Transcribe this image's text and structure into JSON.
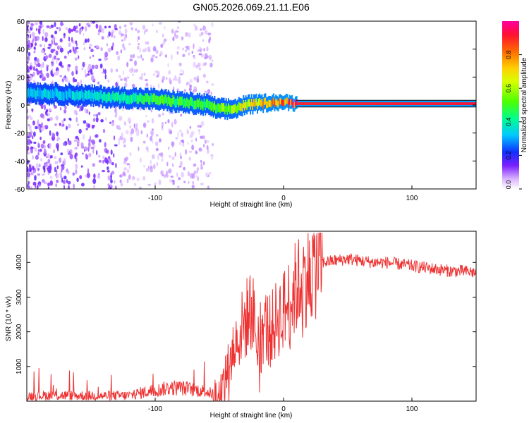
{
  "title": "GN05.2026.069.21.11.E06",
  "chart_data": [
    {
      "type": "heatmap",
      "xlabel": "Height of straight line (km)",
      "ylabel": "Frequency (Hz)",
      "xlim": [
        -200,
        150
      ],
      "ylim": [
        -60,
        60
      ],
      "x_ticks": [
        -100,
        0,
        100
      ],
      "x_tick_labels": [
        "-100",
        "0",
        "100"
      ],
      "y_ticks": [
        -60,
        -40,
        -20,
        0,
        20,
        40,
        60
      ],
      "y_tick_labels": [
        "-60",
        "-40",
        "-20",
        "0",
        "20",
        "40",
        "60"
      ],
      "colorbar": {
        "label": "Normalized spectral amplitude",
        "range": [
          0,
          1
        ],
        "ticks": [
          0.0,
          0.2,
          0.4,
          0.6,
          0.8
        ],
        "tick_labels": [
          "0.0",
          "0.2",
          "0.4",
          "0.6",
          "0.8"
        ]
      },
      "ridge": {
        "x": [
          -200,
          -180,
          -160,
          -140,
          -120,
          -100,
          -80,
          -60,
          -50,
          -40,
          -30,
          -20,
          -10,
          0,
          10,
          150
        ],
        "y": [
          9,
          8,
          7,
          6,
          5,
          4,
          2,
          0,
          -3,
          -3,
          0,
          1,
          2,
          2,
          1,
          1
        ],
        "amplitude": [
          0.35,
          0.35,
          0.35,
          0.4,
          0.45,
          0.5,
          0.5,
          0.5,
          0.55,
          0.6,
          0.7,
          0.75,
          0.8,
          0.85,
          0.9,
          0.92
        ]
      }
    },
    {
      "type": "line",
      "xlabel": "Height of straight line (km)",
      "ylabel": "SNR (10 * v/v)",
      "xlim": [
        -200,
        150
      ],
      "ylim": [
        0,
        4900
      ],
      "x_ticks": [
        -100,
        0,
        100
      ],
      "x_tick_labels": [
        "-100",
        "0",
        "100"
      ],
      "y_ticks": [
        1000,
        2000,
        3000,
        4000
      ],
      "y_tick_labels": [
        "1000",
        "2000",
        "3000",
        "4000"
      ],
      "series": [
        {
          "name": "SNR",
          "color": "#ee3333",
          "x": [
            -200,
            -180,
            -160,
            -140,
            -120,
            -110,
            -100,
            -90,
            -80,
            -70,
            -60,
            -55,
            -50,
            -45,
            -40,
            -35,
            -30,
            -25,
            -20,
            -15,
            -10,
            -5,
            0,
            5,
            10,
            15,
            20,
            25,
            30,
            40,
            50,
            60,
            70,
            80,
            90,
            100,
            110,
            120,
            130,
            140,
            150
          ],
          "y": [
            150,
            170,
            160,
            150,
            160,
            250,
            300,
            380,
            380,
            330,
            280,
            200,
            180,
            600,
            1400,
            1900,
            2300,
            2700,
            1800,
            2200,
            2000,
            2400,
            2600,
            2900,
            3300,
            3500,
            3750,
            3900,
            4000,
            4050,
            4100,
            4050,
            4000,
            4000,
            3950,
            3900,
            3850,
            3800,
            3750,
            3750,
            3700
          ]
        }
      ]
    }
  ]
}
